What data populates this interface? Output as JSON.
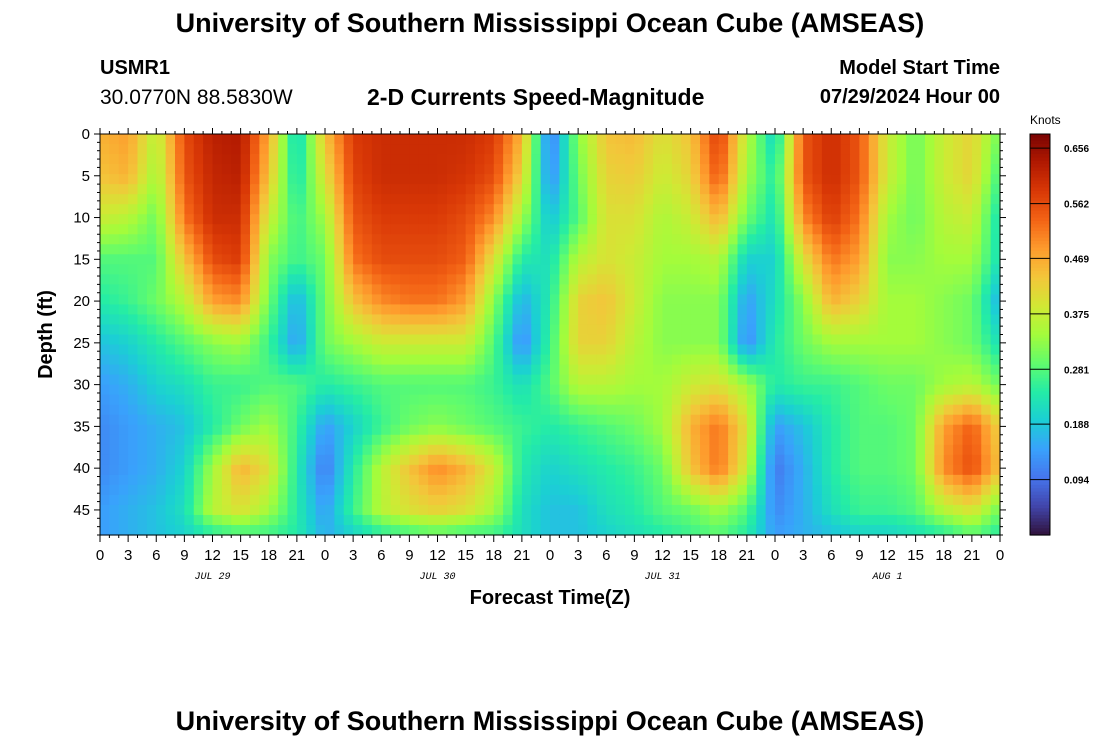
{
  "header": {
    "title": "University of Southern Mississippi Ocean Cube (AMSEAS)",
    "station_id": "USMR1",
    "station_coords": "30.0770N  88.5830W",
    "plot_title": "2-D Currents Speed-Magnitude",
    "start_label": "Model Start Time",
    "start_value": "07/29/2024 Hour 00"
  },
  "footer": {
    "title": "University of Southern Mississippi Ocean Cube (AMSEAS)"
  },
  "chart_data": {
    "type": "heatmap",
    "xlabel": "Forecast Time(Z)",
    "ylabel": "Depth (ft)",
    "colorbar_label": "Knots",
    "x_hours_range": [
      0,
      96
    ],
    "x_tick_labels": [
      "0",
      "3",
      "6",
      "9",
      "12",
      "15",
      "18",
      "21",
      "0",
      "3",
      "6",
      "9",
      "12",
      "15",
      "18",
      "21",
      "0",
      "3",
      "6",
      "9",
      "12",
      "15",
      "18",
      "21",
      "0",
      "3",
      "6",
      "9",
      "12",
      "15",
      "18",
      "21",
      "0"
    ],
    "date_labels": [
      {
        "label": "JUL 29",
        "hour": 12
      },
      {
        "label": "JUL 30",
        "hour": 36
      },
      {
        "label": "JUL 31",
        "hour": 60
      },
      {
        "label": "AUG 1",
        "hour": 84
      }
    ],
    "y_range": [
      0,
      48
    ],
    "y_ticks": [
      0,
      5,
      10,
      15,
      20,
      25,
      30,
      35,
      40,
      45
    ],
    "colorbar_ticks": [
      "0.656",
      "0.562",
      "0.469",
      "0.375",
      "0.281",
      "0.188",
      "0.094"
    ],
    "vmin": 0.0,
    "vmax": 0.68,
    "colormap": [
      "#30123b",
      "#4145ab",
      "#4675ed",
      "#39a2fc",
      "#1bcfd4",
      "#24eca6",
      "#61fc6c",
      "#a4fc3b",
      "#d1e834",
      "#f3c63a",
      "#fe9b2d",
      "#f36315",
      "#d93806",
      "#b11901",
      "#7a0403"
    ],
    "depths_ft": [
      0,
      5,
      10,
      15,
      20,
      25,
      30,
      35,
      40,
      45,
      48
    ],
    "times_hr": [
      0,
      3,
      6,
      9,
      12,
      15,
      18,
      21,
      24,
      27,
      30,
      33,
      36,
      39,
      42,
      45,
      48,
      51,
      54,
      57,
      60,
      63,
      66,
      69,
      72,
      75,
      78,
      81,
      84,
      87,
      90,
      93,
      96
    ],
    "values": [
      [
        0.46,
        0.48,
        0.36,
        0.56,
        0.62,
        0.63,
        0.47,
        0.2,
        0.44,
        0.58,
        0.6,
        0.6,
        0.6,
        0.6,
        0.58,
        0.46,
        0.1,
        0.32,
        0.44,
        0.45,
        0.4,
        0.44,
        0.58,
        0.36,
        0.2,
        0.55,
        0.6,
        0.55,
        0.38,
        0.3,
        0.38,
        0.42,
        0.3
      ],
      [
        0.44,
        0.46,
        0.34,
        0.55,
        0.61,
        0.62,
        0.44,
        0.22,
        0.4,
        0.57,
        0.6,
        0.6,
        0.6,
        0.59,
        0.56,
        0.42,
        0.12,
        0.3,
        0.42,
        0.43,
        0.38,
        0.42,
        0.55,
        0.34,
        0.24,
        0.55,
        0.6,
        0.55,
        0.38,
        0.3,
        0.38,
        0.42,
        0.26
      ],
      [
        0.38,
        0.36,
        0.3,
        0.52,
        0.6,
        0.6,
        0.38,
        0.26,
        0.34,
        0.55,
        0.58,
        0.58,
        0.58,
        0.56,
        0.5,
        0.34,
        0.18,
        0.28,
        0.4,
        0.4,
        0.35,
        0.38,
        0.46,
        0.3,
        0.22,
        0.5,
        0.58,
        0.52,
        0.34,
        0.3,
        0.36,
        0.38,
        0.22
      ],
      [
        0.28,
        0.28,
        0.28,
        0.44,
        0.56,
        0.58,
        0.32,
        0.26,
        0.3,
        0.52,
        0.56,
        0.56,
        0.56,
        0.54,
        0.4,
        0.24,
        0.22,
        0.36,
        0.4,
        0.38,
        0.34,
        0.34,
        0.36,
        0.2,
        0.2,
        0.4,
        0.52,
        0.48,
        0.32,
        0.32,
        0.34,
        0.34,
        0.22
      ],
      [
        0.24,
        0.26,
        0.3,
        0.36,
        0.48,
        0.5,
        0.3,
        0.16,
        0.3,
        0.44,
        0.5,
        0.52,
        0.52,
        0.48,
        0.32,
        0.16,
        0.24,
        0.42,
        0.44,
        0.38,
        0.32,
        0.32,
        0.32,
        0.14,
        0.22,
        0.32,
        0.46,
        0.42,
        0.34,
        0.34,
        0.32,
        0.3,
        0.16
      ],
      [
        0.18,
        0.2,
        0.24,
        0.28,
        0.32,
        0.34,
        0.26,
        0.14,
        0.3,
        0.34,
        0.38,
        0.38,
        0.38,
        0.38,
        0.28,
        0.12,
        0.26,
        0.42,
        0.42,
        0.36,
        0.32,
        0.32,
        0.32,
        0.12,
        0.24,
        0.3,
        0.34,
        0.34,
        0.34,
        0.34,
        0.32,
        0.3,
        0.22
      ],
      [
        0.14,
        0.16,
        0.2,
        0.22,
        0.26,
        0.26,
        0.28,
        0.28,
        0.24,
        0.26,
        0.28,
        0.28,
        0.28,
        0.28,
        0.26,
        0.22,
        0.28,
        0.36,
        0.36,
        0.34,
        0.34,
        0.38,
        0.4,
        0.34,
        0.24,
        0.26,
        0.26,
        0.28,
        0.3,
        0.3,
        0.34,
        0.36,
        0.3
      ],
      [
        0.12,
        0.14,
        0.16,
        0.18,
        0.24,
        0.3,
        0.34,
        0.26,
        0.14,
        0.2,
        0.26,
        0.3,
        0.32,
        0.3,
        0.28,
        0.26,
        0.24,
        0.26,
        0.28,
        0.3,
        0.34,
        0.46,
        0.52,
        0.4,
        0.14,
        0.18,
        0.24,
        0.28,
        0.28,
        0.3,
        0.48,
        0.54,
        0.42
      ],
      [
        0.12,
        0.14,
        0.16,
        0.2,
        0.34,
        0.46,
        0.4,
        0.24,
        0.1,
        0.24,
        0.36,
        0.44,
        0.5,
        0.46,
        0.38,
        0.24,
        0.2,
        0.22,
        0.24,
        0.26,
        0.3,
        0.44,
        0.52,
        0.38,
        0.1,
        0.16,
        0.24,
        0.28,
        0.28,
        0.3,
        0.5,
        0.56,
        0.44
      ],
      [
        0.14,
        0.16,
        0.18,
        0.22,
        0.36,
        0.4,
        0.34,
        0.24,
        0.14,
        0.26,
        0.36,
        0.4,
        0.42,
        0.4,
        0.34,
        0.22,
        0.18,
        0.18,
        0.22,
        0.24,
        0.28,
        0.3,
        0.34,
        0.28,
        0.12,
        0.16,
        0.22,
        0.26,
        0.26,
        0.28,
        0.36,
        0.4,
        0.3
      ],
      [
        0.14,
        0.16,
        0.18,
        0.2,
        0.24,
        0.26,
        0.26,
        0.24,
        0.16,
        0.2,
        0.24,
        0.26,
        0.28,
        0.26,
        0.26,
        0.22,
        0.18,
        0.18,
        0.2,
        0.22,
        0.24,
        0.26,
        0.28,
        0.24,
        0.14,
        0.16,
        0.18,
        0.2,
        0.2,
        0.22,
        0.24,
        0.28,
        0.24
      ]
    ]
  }
}
